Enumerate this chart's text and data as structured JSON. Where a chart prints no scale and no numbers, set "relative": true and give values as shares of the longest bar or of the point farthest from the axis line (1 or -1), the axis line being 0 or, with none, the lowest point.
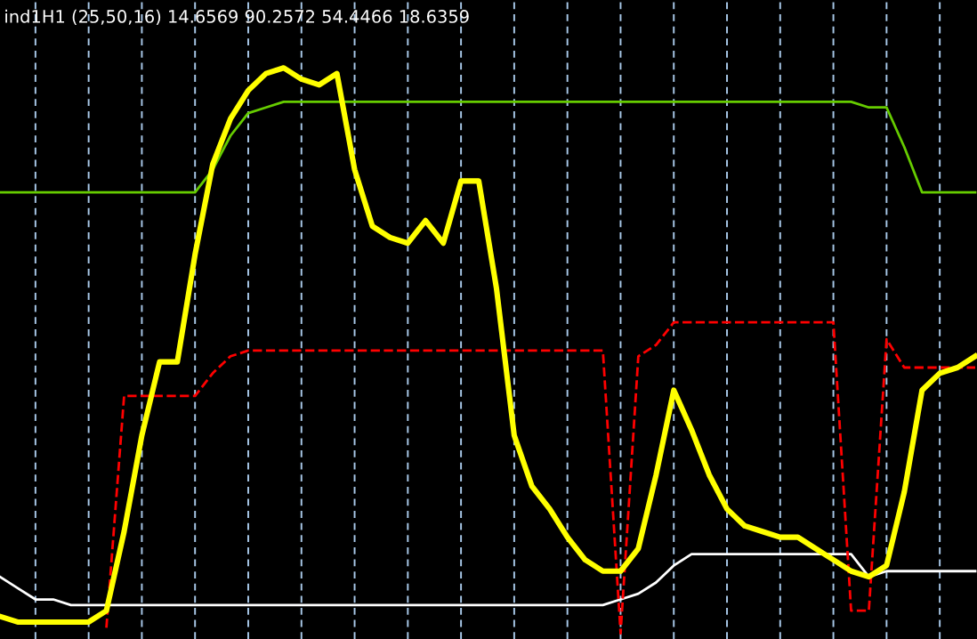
{
  "chart_data": {
    "type": "line",
    "title": "ind1H1 (25,50,16) 14.6569 90.2572 54.4466 18.6359",
    "relative": true,
    "grid": "x",
    "legend": false,
    "marker": "none",
    "categories": [
      null,
      null,
      null,
      null,
      null,
      null,
      null,
      null,
      null,
      null,
      null,
      null,
      null,
      null,
      null,
      null,
      null,
      null,
      null,
      null,
      null,
      null,
      null,
      null,
      null,
      null,
      null,
      null,
      null,
      null,
      null,
      null,
      null,
      null,
      null,
      null,
      null,
      null,
      null,
      null,
      null,
      null,
      null,
      null,
      null,
      null,
      null,
      null,
      null,
      null,
      null,
      null,
      null,
      null,
      null,
      null
    ],
    "series": [
      {
        "color": "#ffffff",
        "line_style": "solid",
        "values": [
          0.1,
          0.08,
          0.06,
          0.06,
          0.05,
          0.05,
          0.05,
          0.05,
          0.05,
          0.05,
          0.05,
          0.05,
          0.05,
          0.05,
          0.05,
          0.05,
          0.05,
          0.05,
          0.05,
          0.05,
          0.05,
          0.05,
          0.05,
          0.05,
          0.05,
          0.05,
          0.05,
          0.05,
          0.05,
          0.05,
          0.05,
          0.05,
          0.05,
          0.05,
          0.05,
          0.06,
          0.07,
          0.09,
          0.12,
          0.14,
          0.14,
          0.14,
          0.14,
          0.14,
          0.14,
          0.14,
          0.14,
          0.14,
          0.14,
          0.1,
          0.11,
          0.11,
          0.11,
          0.11,
          0.11,
          0.11
        ]
      },
      {
        "color": "#66cc00",
        "line_style": "solid",
        "values": [
          0.78,
          0.78,
          0.78,
          0.78,
          0.78,
          0.78,
          0.78,
          0.78,
          0.78,
          0.78,
          0.78,
          0.78,
          0.82,
          0.88,
          0.92,
          0.93,
          0.94,
          0.94,
          0.94,
          0.94,
          0.94,
          0.94,
          0.94,
          0.94,
          0.94,
          0.94,
          0.94,
          0.94,
          0.94,
          0.94,
          0.94,
          0.94,
          0.94,
          0.94,
          0.94,
          0.94,
          0.94,
          0.94,
          0.94,
          0.94,
          0.94,
          0.94,
          0.94,
          0.94,
          0.94,
          0.94,
          0.94,
          0.94,
          0.94,
          0.93,
          0.93,
          0.86,
          0.78,
          0.78,
          0.78,
          0.78
        ]
      },
      {
        "color": "#ff0000",
        "line_style": "dashed",
        "values": [
          null,
          null,
          null,
          null,
          null,
          null,
          0.01,
          0.42,
          0.42,
          0.42,
          0.42,
          0.42,
          0.46,
          0.49,
          0.5,
          0.5,
          0.5,
          0.5,
          0.5,
          0.5,
          0.5,
          0.5,
          0.5,
          0.5,
          0.5,
          0.5,
          0.5,
          0.5,
          0.5,
          0.5,
          0.5,
          0.5,
          0.5,
          0.5,
          0.5,
          0.0,
          0.49,
          0.51,
          0.55,
          0.55,
          0.55,
          0.55,
          0.55,
          0.55,
          0.55,
          0.55,
          0.55,
          0.55,
          0.04,
          0.04,
          0.52,
          0.47,
          0.47,
          0.47,
          0.47,
          0.47
        ]
      },
      {
        "color": "#ffff00",
        "line_style": "solid",
        "values": [
          0.03,
          0.02,
          0.02,
          0.02,
          0.02,
          0.02,
          0.04,
          0.18,
          0.35,
          0.48,
          0.48,
          0.67,
          0.83,
          0.91,
          0.96,
          0.99,
          1,
          0.98,
          0.97,
          0.99,
          0.82,
          0.72,
          0.7,
          0.69,
          0.73,
          0.69,
          0.8,
          0.8,
          0.61,
          0.35,
          0.26,
          0.22,
          0.17,
          0.13,
          0.11,
          0.11,
          0.15,
          0.28,
          0.43,
          0.36,
          0.28,
          0.22,
          0.19,
          0.18,
          0.17,
          0.17,
          0.15,
          0.13,
          0.11,
          0.1,
          0.12,
          0.25,
          0.43,
          0.46,
          0.47,
          0.49
        ]
      }
    ]
  }
}
